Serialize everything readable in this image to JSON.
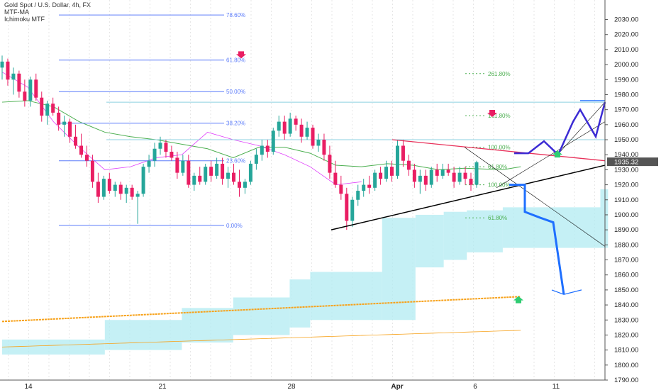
{
  "legend": {
    "title": "Gold Spot / U.S. Dollar, 4h, FX",
    "indicator1": "MTF-MA",
    "indicator2": "Ichimoku MTF"
  },
  "colors": {
    "bull": "#26a69a",
    "bear": "#e91e63",
    "fib": "#5c7cfa",
    "fib_ext": "#4caf50",
    "cloud": "#b2ebf2",
    "ma_orange": "#f7a21b",
    "ma_green": "#4caf50",
    "ma_pink": "#e040fb",
    "trend_red": "#e8315a",
    "trend_black": "#000000",
    "path_purple": "#3b2bd4",
    "path_blue": "#1e6fff",
    "hline": "#8ed1e0",
    "price_badge": "#555555"
  },
  "chart_data": {
    "type": "candlestick",
    "symbol": "Gold Spot / U.S. Dollar",
    "timeframe": "4h",
    "ylim": [
      1790,
      2043
    ],
    "y_ticks": [
      "1790.00",
      "1800.00",
      "1810.00",
      "1820.00",
      "1830.00",
      "1840.00",
      "1850.00",
      "1860.00",
      "1870.00",
      "1880.00",
      "1890.00",
      "1900.00",
      "1910.00",
      "1920.00",
      "1930.00",
      "1940.00",
      "1950.00",
      "1960.00",
      "1970.00",
      "1980.00",
      "1990.00",
      "2000.00",
      "2010.00",
      "2020.00",
      "2030.00"
    ],
    "x_ticks": [
      "14",
      "21",
      "28",
      "Apr",
      "6",
      "11"
    ],
    "last_price": "1935.32",
    "candles": [
      [
        1998,
        2006,
        1990,
        2002
      ],
      [
        2002,
        2004,
        1986,
        1990
      ],
      [
        1990,
        1998,
        1980,
        1994
      ],
      [
        1994,
        1996,
        1978,
        1982
      ],
      [
        1982,
        1990,
        1972,
        1976
      ],
      [
        1976,
        1992,
        1972,
        1990
      ],
      [
        1990,
        1994,
        1976,
        1978
      ],
      [
        1978,
        1982,
        1962,
        1966
      ],
      [
        1966,
        1976,
        1960,
        1974
      ],
      [
        1974,
        1978,
        1966,
        1968
      ],
      [
        1968,
        1972,
        1956,
        1960
      ],
      [
        1960,
        1966,
        1952,
        1962
      ],
      [
        1962,
        1964,
        1948,
        1952
      ],
      [
        1952,
        1960,
        1944,
        1946
      ],
      [
        1946,
        1954,
        1938,
        1940
      ],
      [
        1940,
        1946,
        1932,
        1936
      ],
      [
        1936,
        1940,
        1918,
        1922
      ],
      [
        1922,
        1928,
        1908,
        1912
      ],
      [
        1912,
        1926,
        1910,
        1924
      ],
      [
        1924,
        1928,
        1914,
        1916
      ],
      [
        1916,
        1922,
        1912,
        1920
      ],
      [
        1920,
        1922,
        1910,
        1914
      ],
      [
        1914,
        1920,
        1908,
        1918
      ],
      [
        1918,
        1920,
        1910,
        1912
      ],
      [
        1912,
        1916,
        1894,
        1914
      ],
      [
        1914,
        1934,
        1912,
        1932
      ],
      [
        1932,
        1940,
        1928,
        1936
      ],
      [
        1936,
        1948,
        1932,
        1944
      ],
      [
        1944,
        1952,
        1940,
        1948
      ],
      [
        1948,
        1950,
        1938,
        1942
      ],
      [
        1942,
        1946,
        1936,
        1938
      ],
      [
        1938,
        1942,
        1924,
        1928
      ],
      [
        1928,
        1940,
        1926,
        1936
      ],
      [
        1936,
        1940,
        1918,
        1920
      ],
      [
        1920,
        1928,
        1916,
        1926
      ],
      [
        1926,
        1932,
        1920,
        1922
      ],
      [
        1922,
        1934,
        1920,
        1932
      ],
      [
        1932,
        1936,
        1922,
        1926
      ],
      [
        1926,
        1938,
        1924,
        1934
      ],
      [
        1934,
        1938,
        1920,
        1924
      ],
      [
        1924,
        1932,
        1918,
        1928
      ],
      [
        1928,
        1934,
        1920,
        1922
      ],
      [
        1922,
        1930,
        1912,
        1918
      ],
      [
        1918,
        1924,
        1914,
        1922
      ],
      [
        1922,
        1936,
        1920,
        1934
      ],
      [
        1934,
        1944,
        1930,
        1940
      ],
      [
        1940,
        1950,
        1936,
        1946
      ],
      [
        1946,
        1950,
        1938,
        1942
      ],
      [
        1942,
        1958,
        1940,
        1956
      ],
      [
        1956,
        1966,
        1952,
        1962
      ],
      [
        1962,
        1966,
        1950,
        1954
      ],
      [
        1954,
        1968,
        1952,
        1964
      ],
      [
        1964,
        1966,
        1956,
        1960
      ],
      [
        1960,
        1964,
        1948,
        1952
      ],
      [
        1952,
        1962,
        1950,
        1958
      ],
      [
        1958,
        1960,
        1944,
        1946
      ],
      [
        1946,
        1954,
        1942,
        1950
      ],
      [
        1950,
        1954,
        1936,
        1940
      ],
      [
        1940,
        1946,
        1924,
        1928
      ],
      [
        1928,
        1936,
        1918,
        1920
      ],
      [
        1920,
        1926,
        1910,
        1914
      ],
      [
        1914,
        1918,
        1890,
        1896
      ],
      [
        1896,
        1912,
        1892,
        1910
      ],
      [
        1910,
        1920,
        1906,
        1916
      ],
      [
        1916,
        1924,
        1912,
        1920
      ],
      [
        1920,
        1926,
        1914,
        1918
      ],
      [
        1918,
        1930,
        1916,
        1928
      ],
      [
        1928,
        1932,
        1920,
        1924
      ],
      [
        1924,
        1936,
        1922,
        1932
      ],
      [
        1932,
        1936,
        1922,
        1926
      ],
      [
        1926,
        1950,
        1924,
        1946
      ],
      [
        1946,
        1950,
        1932,
        1936
      ],
      [
        1936,
        1940,
        1926,
        1930
      ],
      [
        1930,
        1934,
        1918,
        1922
      ],
      [
        1922,
        1930,
        1914,
        1926
      ],
      [
        1926,
        1930,
        1916,
        1920
      ],
      [
        1920,
        1932,
        1918,
        1930
      ],
      [
        1930,
        1934,
        1922,
        1926
      ],
      [
        1926,
        1934,
        1924,
        1930
      ],
      [
        1930,
        1934,
        1926,
        1928
      ],
      [
        1928,
        1932,
        1918,
        1922
      ],
      [
        1922,
        1932,
        1920,
        1928
      ],
      [
        1928,
        1932,
        1920,
        1924
      ],
      [
        1924,
        1928,
        1916,
        1920
      ],
      [
        1920,
        1936,
        1918,
        1935
      ]
    ],
    "fib_retracement": [
      {
        "label": "0.00%",
        "value": 1893
      },
      {
        "label": "23.60%",
        "value": 1936
      },
      {
        "label": "38.20%",
        "value": 1961
      },
      {
        "label": "50.00%",
        "value": 1982
      },
      {
        "label": "61.80%",
        "value": 2003
      },
      {
        "label": "78.60%",
        "value": 2033
      }
    ],
    "fib_extension": [
      {
        "label": "61.80%",
        "value": 1898
      },
      {
        "label": "100.00%",
        "value": 1920
      },
      {
        "label": "61.80%",
        "value": 1932
      },
      {
        "label": "100.00%",
        "value": 1945
      },
      {
        "label": "161.80%",
        "value": 1966
      },
      {
        "label": "261.80%",
        "value": 1994
      }
    ],
    "horizontal_levels": [
      1975,
      1950
    ],
    "annotations": {
      "down_arrows": [
        {
          "x_index": 86,
          "value": 2006
        },
        {
          "x_index": 175,
          "value": 1967
        }
      ],
      "up_arrows": [
        {
          "x_index": 198,
          "value": 1940
        },
        {
          "x_index": 180,
          "value": 1844
        }
      ]
    }
  }
}
